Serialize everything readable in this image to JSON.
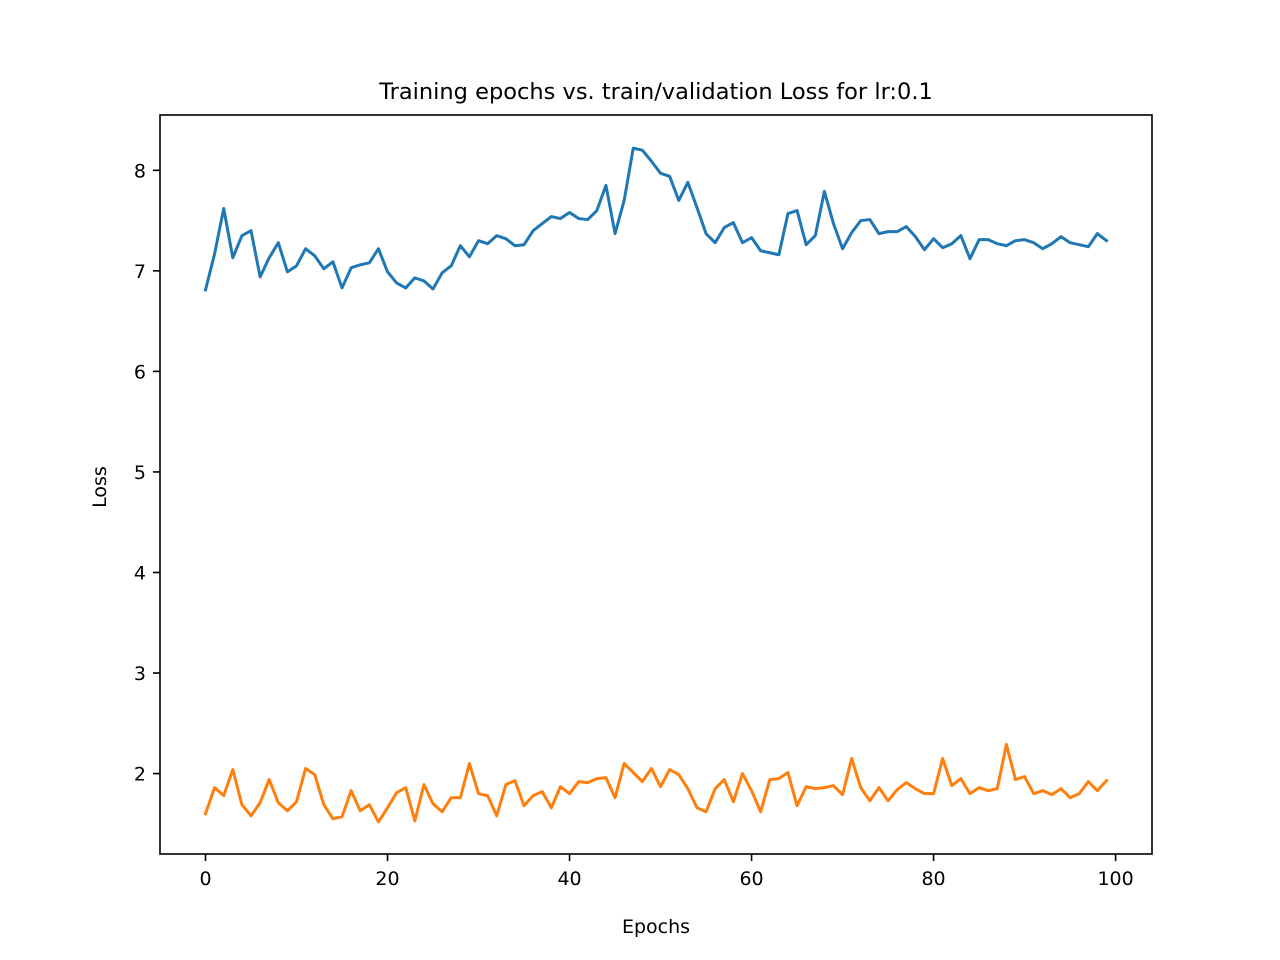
{
  "chart_data": {
    "type": "line",
    "title": "Training epochs vs. train/validation Loss for lr:0.1",
    "xlabel": "Epochs",
    "ylabel": "Loss",
    "xlim": [
      -5,
      104
    ],
    "ylim": [
      1.2,
      8.55
    ],
    "xticks": [
      0,
      20,
      40,
      60,
      80,
      100
    ],
    "yticks": [
      2,
      3,
      4,
      5,
      6,
      7,
      8
    ],
    "xtick_labels": [
      "0",
      "20",
      "40",
      "60",
      "80",
      "100"
    ],
    "ytick_labels": [
      "2",
      "3",
      "4",
      "5",
      "6",
      "7",
      "8"
    ],
    "grid": false,
    "legend": "none",
    "series": [
      {
        "color": "#1f77b4",
        "values": [
          6.81,
          7.17,
          7.62,
          7.13,
          7.35,
          7.4,
          6.94,
          7.13,
          7.28,
          6.99,
          7.05,
          7.22,
          7.15,
          7.02,
          7.09,
          6.83,
          7.03,
          7.06,
          7.08,
          7.22,
          6.99,
          6.88,
          6.83,
          6.93,
          6.9,
          6.82,
          6.98,
          7.05,
          7.25,
          7.14,
          7.3,
          7.27,
          7.35,
          7.32,
          7.25,
          7.26,
          7.4,
          7.47,
          7.54,
          7.52,
          7.58,
          7.52,
          7.51,
          7.6,
          7.85,
          7.37,
          7.7,
          8.22,
          8.2,
          8.09,
          7.97,
          7.94,
          7.7,
          7.88,
          7.63,
          7.37,
          7.28,
          7.43,
          7.48,
          7.28,
          7.33,
          7.2,
          7.18,
          7.16,
          7.57,
          7.6,
          7.26,
          7.35,
          7.79,
          7.47,
          7.22,
          7.38,
          7.5,
          7.51,
          7.37,
          7.39,
          7.39,
          7.44,
          7.34,
          7.21,
          7.32,
          7.23,
          7.27,
          7.35,
          7.12,
          7.31,
          7.31,
          7.27,
          7.25,
          7.3,
          7.31,
          7.28,
          7.22,
          7.27,
          7.34,
          7.28,
          7.26,
          7.24,
          7.37,
          7.3
        ]
      },
      {
        "color": "#ff7f0e",
        "values": [
          1.6,
          1.86,
          1.78,
          2.04,
          1.69,
          1.58,
          1.71,
          1.94,
          1.71,
          1.63,
          1.72,
          2.05,
          1.99,
          1.69,
          1.55,
          1.57,
          1.83,
          1.63,
          1.69,
          1.52,
          1.66,
          1.81,
          1.86,
          1.53,
          1.89,
          1.7,
          1.62,
          1.76,
          1.76,
          2.1,
          1.8,
          1.78,
          1.58,
          1.89,
          1.93,
          1.68,
          1.78,
          1.82,
          1.66,
          1.87,
          1.8,
          1.92,
          1.91,
          1.95,
          1.96,
          1.76,
          2.1,
          2.01,
          1.92,
          2.05,
          1.87,
          2.04,
          1.99,
          1.85,
          1.66,
          1.62,
          1.85,
          1.94,
          1.72,
          2.0,
          1.83,
          1.62,
          1.94,
          1.95,
          2.01,
          1.68,
          1.87,
          1.85,
          1.86,
          1.88,
          1.79,
          2.15,
          1.86,
          1.73,
          1.86,
          1.73,
          1.84,
          1.91,
          1.85,
          1.8,
          1.8,
          2.15,
          1.88,
          1.95,
          1.8,
          1.86,
          1.83,
          1.85,
          2.29,
          1.94,
          1.97,
          1.8,
          1.83,
          1.79,
          1.85,
          1.76,
          1.8,
          1.92,
          1.83,
          1.93
        ]
      }
    ]
  }
}
